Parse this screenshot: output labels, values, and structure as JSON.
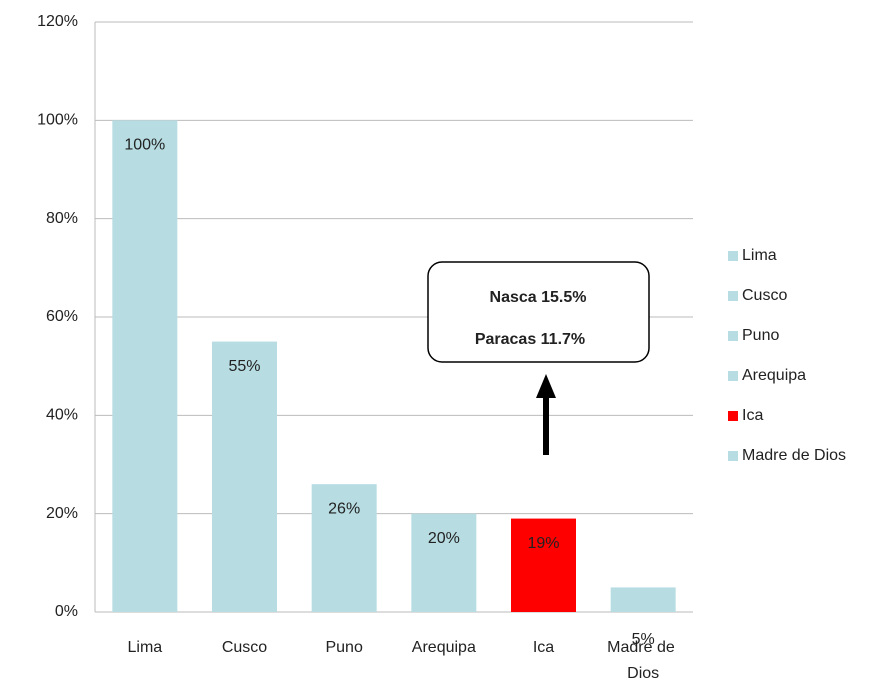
{
  "chart_data": {
    "type": "bar",
    "categories": [
      "Lima",
      "Cusco",
      "Puno",
      "Arequipa",
      "Ica",
      "Madre de Dios"
    ],
    "values": [
      100,
      55,
      26,
      20,
      19,
      5
    ],
    "value_labels": [
      "100%",
      "55%",
      "26%",
      "20%",
      "19%",
      "5%"
    ],
    "colors": [
      "#b7dde3",
      "#b7dde3",
      "#b7dde3",
      "#b7dde3",
      "#ff0000",
      "#b7dde3"
    ],
    "ylim": [
      0,
      120
    ],
    "yticks": [
      {
        "value": 0,
        "label": "0%"
      },
      {
        "value": 20,
        "label": "20%"
      },
      {
        "value": 40,
        "label": "40%"
      },
      {
        "value": 60,
        "label": "60%"
      },
      {
        "value": 80,
        "label": "80%"
      },
      {
        "value": 100,
        "label": "100%"
      },
      {
        "value": 120,
        "label": "120%"
      }
    ],
    "grid": true,
    "legend": "right",
    "annotations": [
      "Nasca 15.5%",
      "Paracas 11.7%"
    ]
  }
}
